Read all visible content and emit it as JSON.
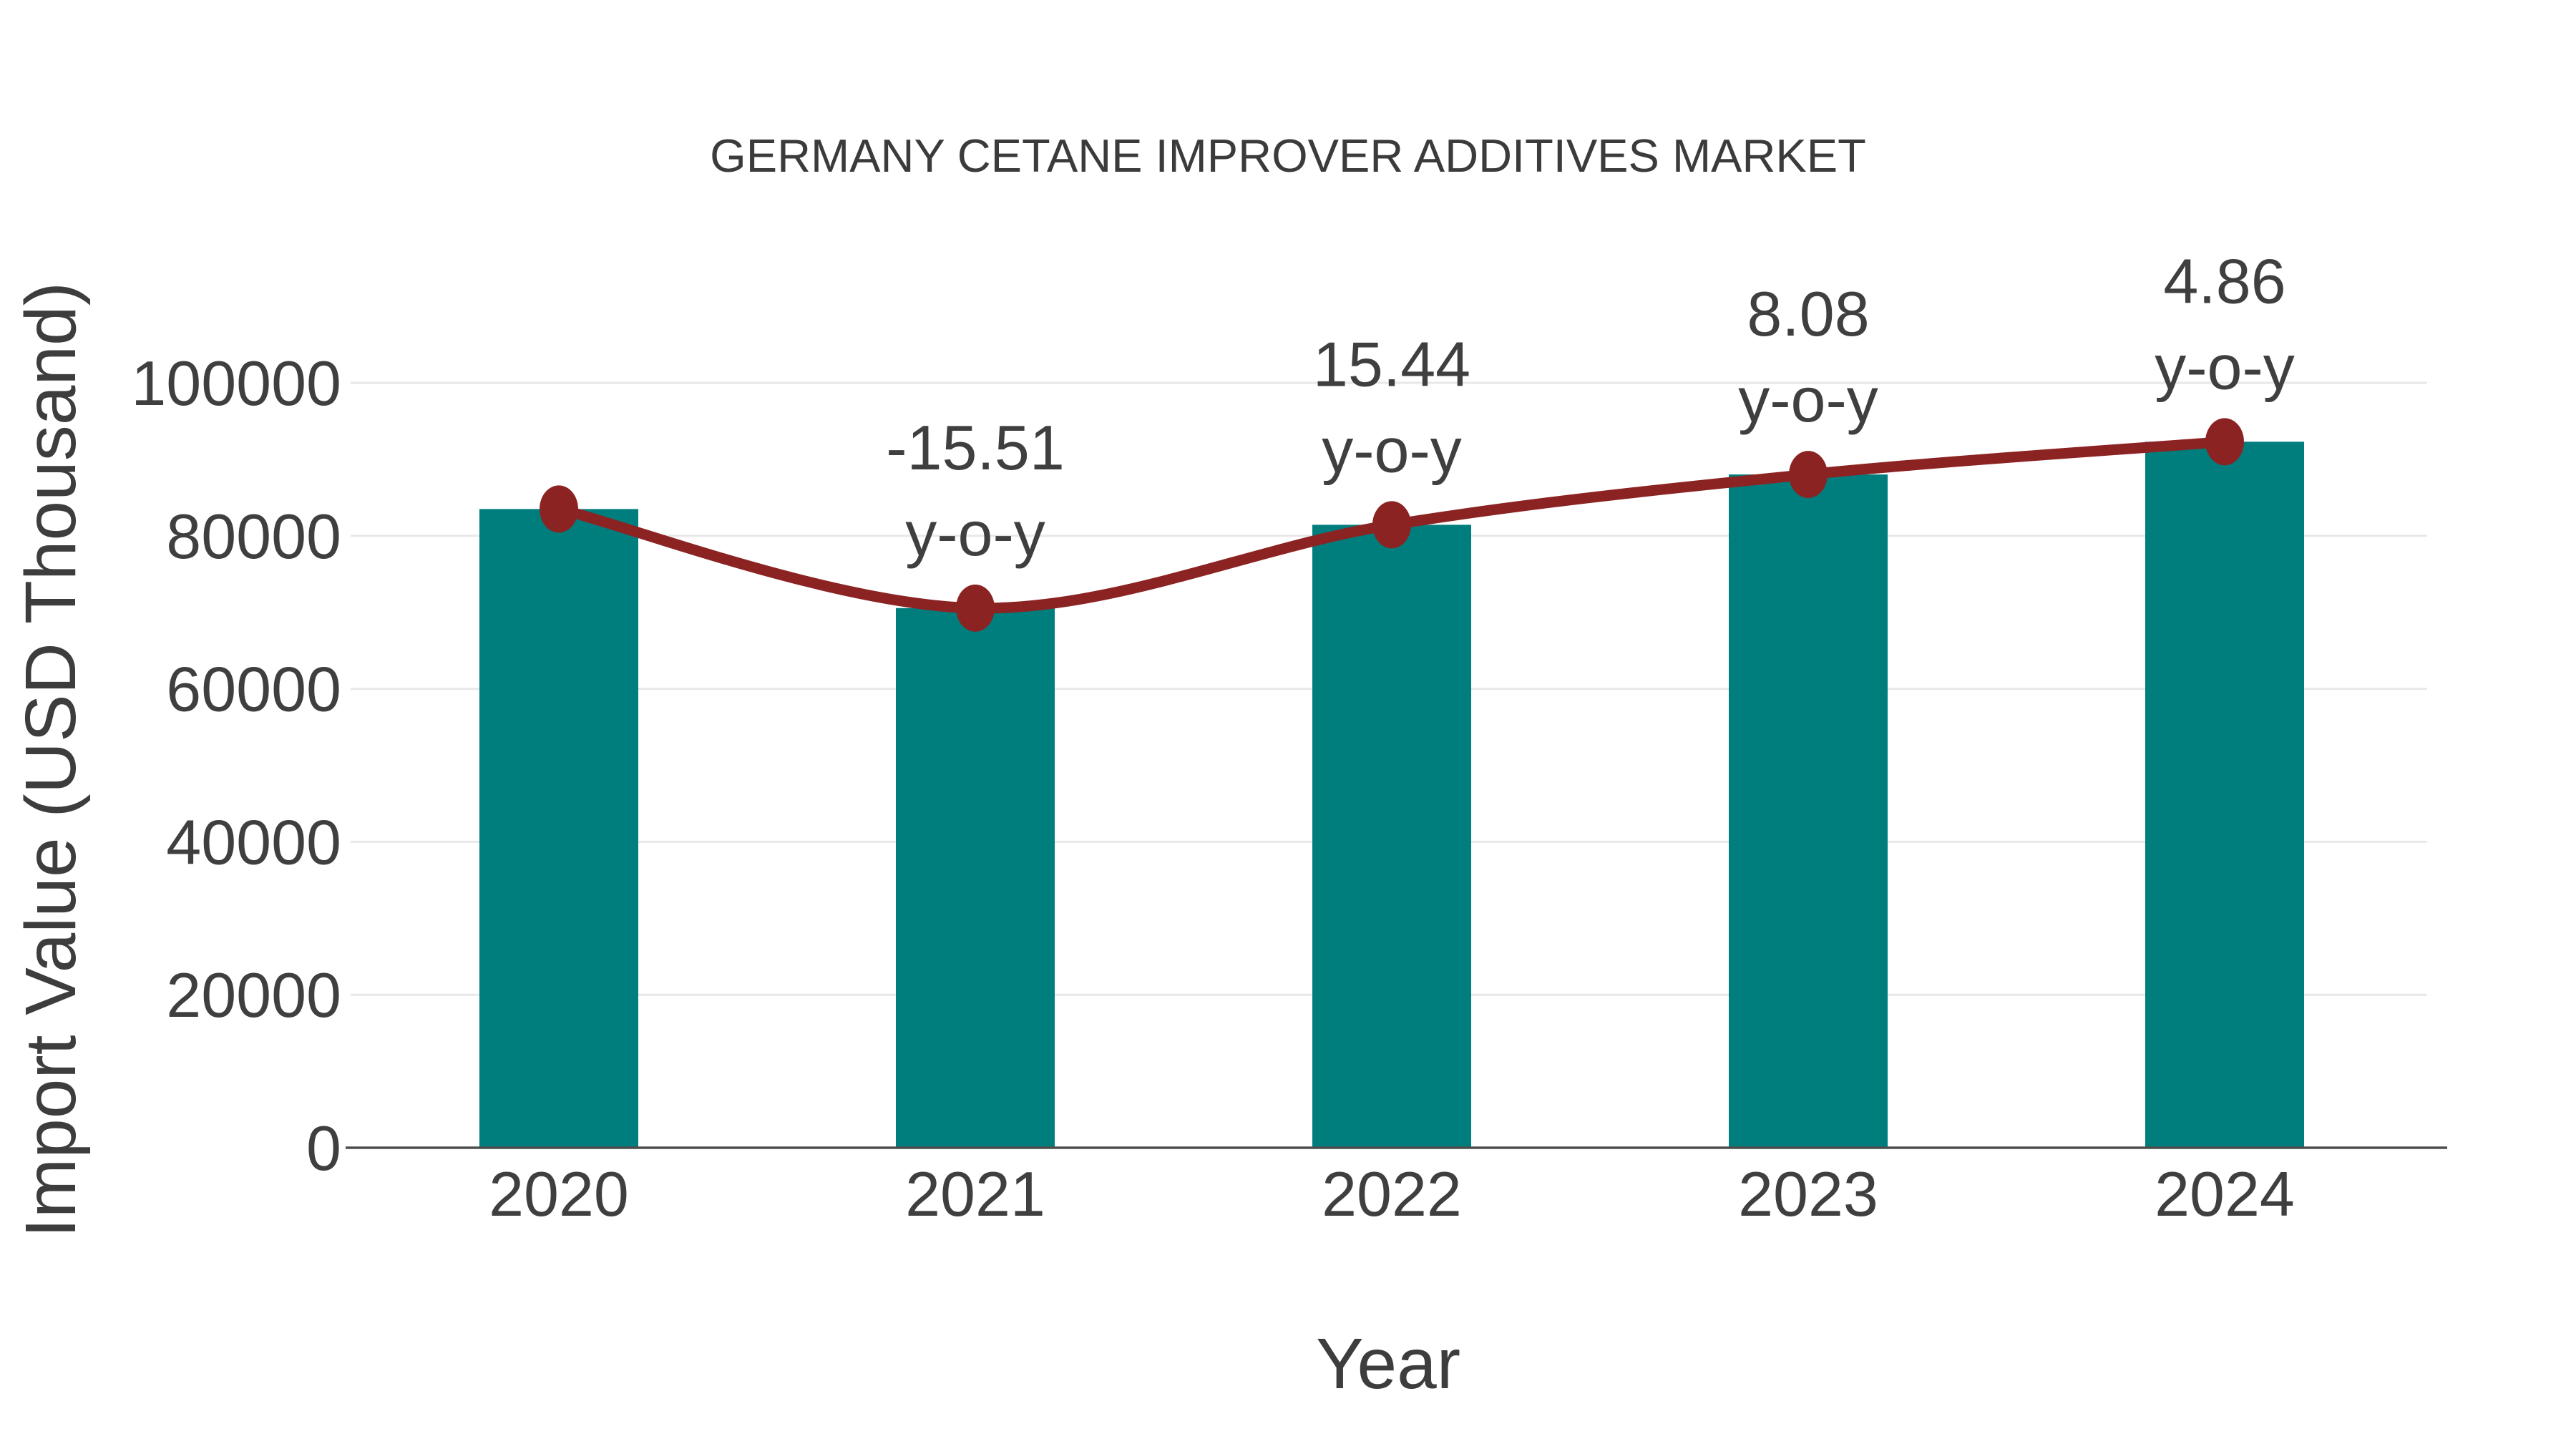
{
  "chart_data": {
    "type": "bar+line",
    "title": "GERMANY CETANE IMPROVER ADDITIVES MARKET",
    "xlabel": "Year",
    "ylabel": "Import Value (USD Thousand)",
    "categories": [
      "2020",
      "2021",
      "2022",
      "2023",
      "2024"
    ],
    "series": [
      {
        "name": "import-value-bars",
        "type": "bar",
        "values": [
          83500,
          70550,
          81440,
          88020,
          92300
        ],
        "color": "#007E7D"
      },
      {
        "name": "import-value-trend-line",
        "type": "line",
        "values": [
          83500,
          70550,
          81440,
          88020,
          92300
        ],
        "color": "#8C2323"
      }
    ],
    "annotations": [
      {
        "category": "2021",
        "value_label": "-15.51",
        "unit_label": "y-o-y"
      },
      {
        "category": "2022",
        "value_label": "15.44",
        "unit_label": "y-o-y"
      },
      {
        "category": "2023",
        "value_label": "8.08",
        "unit_label": "y-o-y"
      },
      {
        "category": "2024",
        "value_label": "4.86",
        "unit_label": "y-o-y"
      }
    ],
    "yticks": [
      0,
      20000,
      40000,
      60000,
      80000,
      100000
    ],
    "ylim": [
      0,
      100000
    ],
    "grid": true,
    "legend": false,
    "colors": {
      "bar": "#007E7D",
      "line": "#8C2323",
      "grid": "#e8e8e8",
      "axis_line": "#4d4d4d",
      "tick_text": "#3f3f3f",
      "title_text": "#3b3b3b",
      "axis_title_text": "#3d3d3d",
      "background": "#ffffff"
    }
  }
}
